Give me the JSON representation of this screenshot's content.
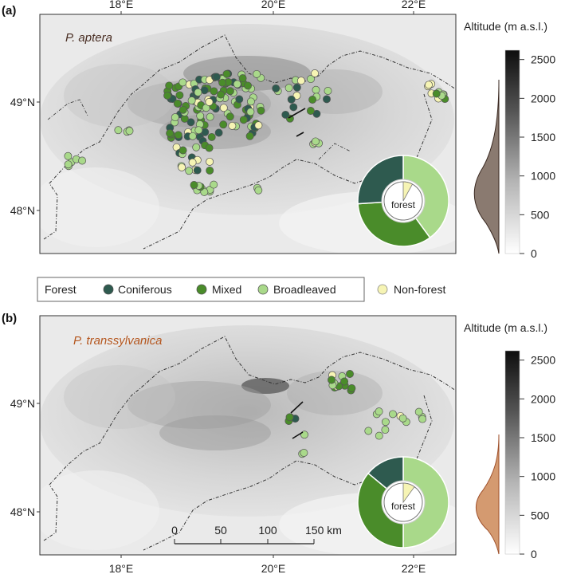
{
  "panel_a": {
    "label": "(a)",
    "species": "P. aptera",
    "species_color": "#4a2f24",
    "pie_label": "forest",
    "lon_ticks": [
      "18°E",
      "20°E",
      "22°E"
    ],
    "lat_ticks": [
      "49°N",
      "48°N"
    ]
  },
  "panel_b": {
    "label": "(b)",
    "species": "P. transsylvanica",
    "species_color": "#b5571f",
    "pie_label": "forest",
    "lon_ticks": [
      "18°E",
      "20°E",
      "22°E"
    ],
    "lat_ticks": [
      "49°N",
      "48°N"
    ],
    "scale_ticks": [
      "0",
      "50",
      "100",
      "150 km"
    ]
  },
  "legend": {
    "title": "Forest",
    "items": [
      {
        "label": "Coniferous",
        "color": "#2e5a4f"
      },
      {
        "label": "Mixed",
        "color": "#4a8c2a"
      },
      {
        "label": "Broadleaved",
        "color": "#a9d98a"
      },
      {
        "label": "Non-forest",
        "color": "#f6f4b4"
      }
    ]
  },
  "altitude": {
    "title": "Altitude (m a.s.l.)",
    "ticks": [
      "2500",
      "2000",
      "1500",
      "1000",
      "500",
      "0"
    ],
    "a_density_color": "#8a7a70",
    "b_density_color": "#d49a70"
  },
  "chart_data": [
    {
      "type": "scatter",
      "panel": "(a)",
      "title": "P. aptera",
      "x_axis": {
        "ticks": [
          "18°E",
          "20°E",
          "22°E"
        ],
        "range": [
          16.8,
          22.6
        ]
      },
      "y_axis": {
        "ticks": [
          "48°N",
          "49°N"
        ],
        "range": [
          47.7,
          49.7
        ]
      },
      "pie": {
        "label": "forest",
        "slices": [
          {
            "name": "Broadleaved",
            "value": 0.4
          },
          {
            "name": "Mixed",
            "value": 0.34
          },
          {
            "name": "Coniferous",
            "value": 0.26
          }
        ],
        "inner_non_forest_share": 0.08
      },
      "altitude_density_range": [
        0,
        1650
      ],
      "altitude_density_peak": 600
    },
    {
      "type": "scatter",
      "panel": "(b)",
      "title": "P. transsylvanica",
      "x_axis": {
        "ticks": [
          "18°E",
          "20°E",
          "22°E"
        ],
        "range": [
          16.8,
          22.6
        ]
      },
      "y_axis": {
        "ticks": [
          "48°N",
          "49°N"
        ],
        "range": [
          47.7,
          49.7
        ]
      },
      "pie": {
        "label": "forest",
        "slices": [
          {
            "name": "Broadleaved",
            "value": 0.5
          },
          {
            "name": "Mixed",
            "value": 0.36
          },
          {
            "name": "Coniferous",
            "value": 0.14
          }
        ],
        "inner_non_forest_share": 0.1
      },
      "altitude_density_range": [
        0,
        1100
      ],
      "altitude_density_peak": 450,
      "scale_bar": [
        "0",
        "50",
        "100",
        "150 km"
      ]
    }
  ]
}
